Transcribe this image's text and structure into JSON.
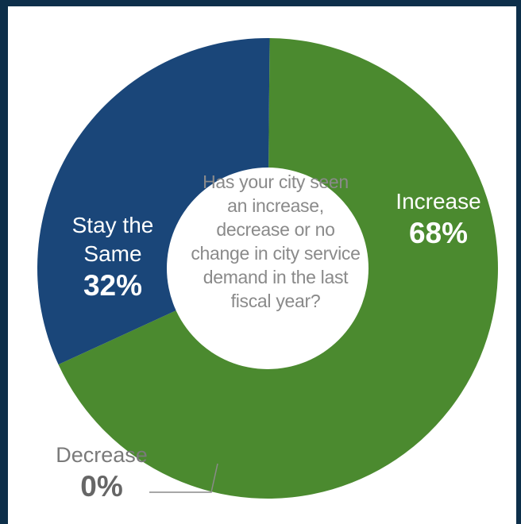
{
  "chart_data": {
    "type": "pie",
    "title": "Has your city seen an increase, decrease or no change in city service demand in the last fiscal year?",
    "slices": [
      {
        "label": "Increase",
        "value": 68,
        "value_label": "68%",
        "color": "#4b8a2f"
      },
      {
        "label": "Stay the Same",
        "value": 32,
        "value_label": "32%",
        "color": "#1a4679"
      },
      {
        "label": "Decrease",
        "value": 0,
        "value_label": "0%",
        "color": "#7a7a7a"
      }
    ],
    "style": "donut"
  },
  "center_question": {
    "lines": [
      "Has your city seen",
      "an increase,",
      "decrease or no",
      "change in city service",
      "demand in the last",
      "fiscal year?"
    ]
  },
  "labels": {
    "increase": {
      "name": "Increase",
      "pct": "68%"
    },
    "same": {
      "name_line1": "Stay the",
      "name_line2": "Same",
      "pct": "32%"
    },
    "decrease": {
      "name": "Decrease",
      "pct": "0%"
    }
  },
  "colors": {
    "increase": "#4b8a2f",
    "same": "#1a4679",
    "background_frame": "#0d2f4a",
    "center": "#ffffff",
    "leader_line": "#8a8a8a"
  }
}
